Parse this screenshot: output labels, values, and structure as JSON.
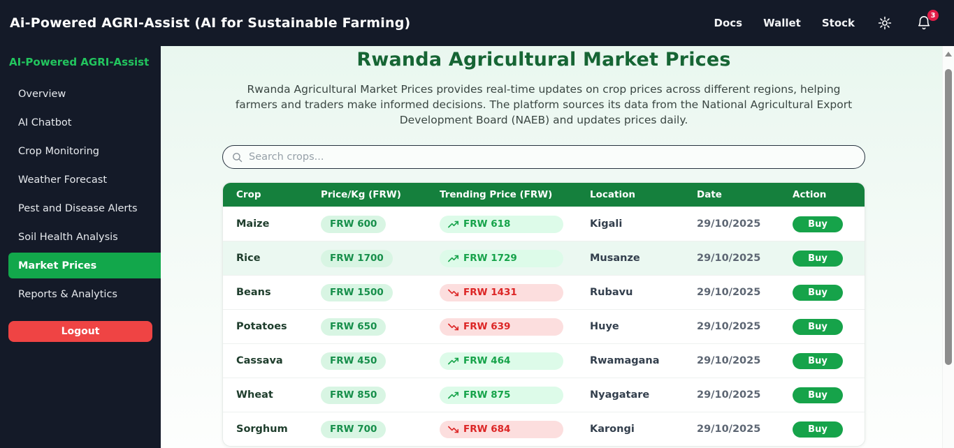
{
  "header": {
    "title": "Ai-Powered AGRI-Assist (AI for Sustainable Farming)",
    "nav": [
      "Docs",
      "Wallet",
      "Stock"
    ],
    "notification_count": "3"
  },
  "sidebar": {
    "title": "AI-Powered AGRI-Assist",
    "items": [
      {
        "label": "Overview",
        "active": false
      },
      {
        "label": "AI Chatbot",
        "active": false
      },
      {
        "label": "Crop Monitoring",
        "active": false
      },
      {
        "label": "Weather Forecast",
        "active": false
      },
      {
        "label": "Pest and Disease Alerts",
        "active": false
      },
      {
        "label": "Soil Health Analysis",
        "active": false
      },
      {
        "label": "Market Prices",
        "active": true
      },
      {
        "label": "Reports & Analytics",
        "active": false
      }
    ],
    "logout_label": "Logout"
  },
  "main": {
    "title": "Rwanda Agricultural Market Prices",
    "description": "Rwanda Agricultural Market Prices provides real-time updates on crop prices across different regions, helping farmers and traders make informed decisions. The platform sources its data from the National Agricultural Export Development Board (NAEB) and updates prices daily.",
    "search_placeholder": "Search crops...",
    "table": {
      "columns": [
        "Crop",
        "Price/Kg (FRW)",
        "Trending Price (FRW)",
        "Location",
        "Date",
        "Action"
      ],
      "buy_label": "Buy",
      "rows": [
        {
          "crop": "Maize",
          "price": "FRW 600",
          "trend": "FRW 618",
          "trend_dir": "up",
          "location": "Kigali",
          "date": "29/10/2025",
          "highlight": false
        },
        {
          "crop": "Rice",
          "price": "FRW 1700",
          "trend": "FRW 1729",
          "trend_dir": "up",
          "location": "Musanze",
          "date": "29/10/2025",
          "highlight": true
        },
        {
          "crop": "Beans",
          "price": "FRW 1500",
          "trend": "FRW 1431",
          "trend_dir": "down",
          "location": "Rubavu",
          "date": "29/10/2025",
          "highlight": false
        },
        {
          "crop": "Potatoes",
          "price": "FRW 650",
          "trend": "FRW 639",
          "trend_dir": "down",
          "location": "Huye",
          "date": "29/10/2025",
          "highlight": false
        },
        {
          "crop": "Cassava",
          "price": "FRW 450",
          "trend": "FRW 464",
          "trend_dir": "up",
          "location": "Rwamagana",
          "date": "29/10/2025",
          "highlight": false
        },
        {
          "crop": "Wheat",
          "price": "FRW 850",
          "trend": "FRW 875",
          "trend_dir": "up",
          "location": "Nyagatare",
          "date": "29/10/2025",
          "highlight": false
        },
        {
          "crop": "Sorghum",
          "price": "FRW 700",
          "trend": "FRW 684",
          "trend_dir": "down",
          "location": "Karongi",
          "date": "29/10/2025",
          "highlight": false
        }
      ]
    }
  },
  "colors": {
    "dark_navy": "#141a28",
    "brand_green": "#22c55e",
    "active_green": "#12a74b",
    "table_header_green": "#15803d",
    "buy_green": "#16a34a",
    "logout_red": "#ef4444",
    "badge_red": "#e11d48",
    "trend_up_text": "#16a34a",
    "trend_down_text": "#dc2626",
    "title_green": "#166534"
  }
}
